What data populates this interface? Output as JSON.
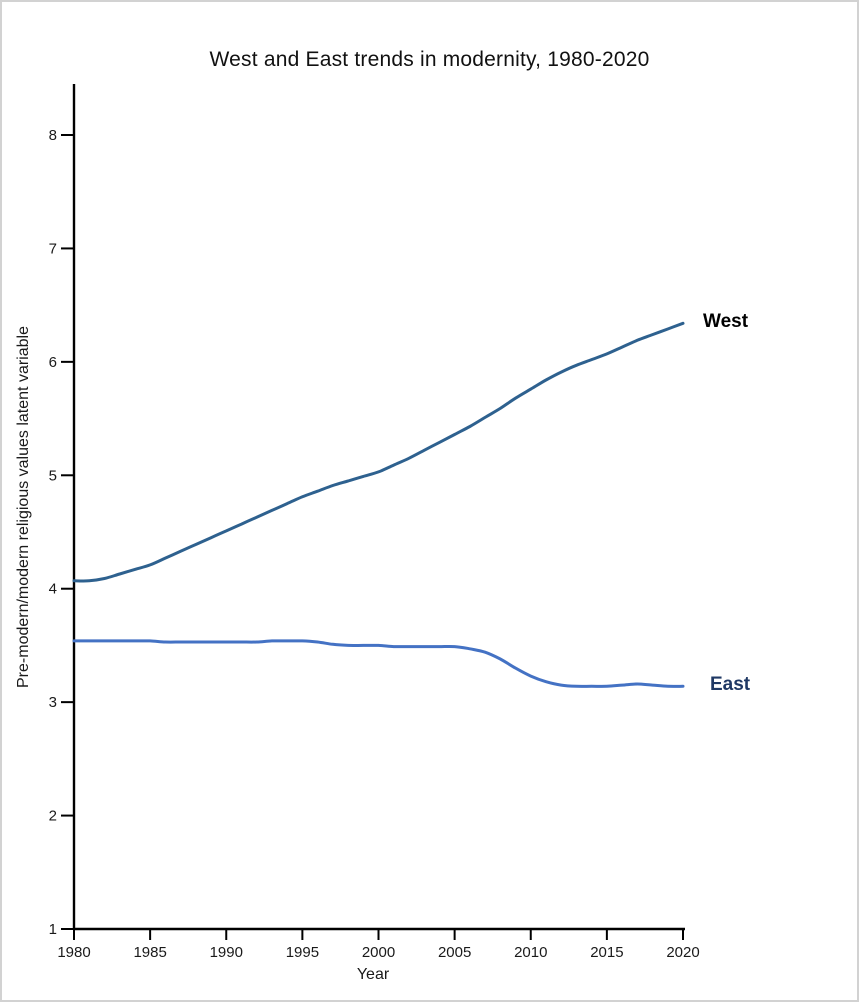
{
  "window": {
    "background": "#ffffff",
    "border_color": "#d2d2d2"
  },
  "chart_data": {
    "type": "line",
    "title": "West and East trends in modernity, 1980-2020",
    "xlabel": "Year",
    "ylabel": "Pre-modern/modern religious values latent variable",
    "xlim": [
      1980,
      2020
    ],
    "ylim": [
      1,
      8.45
    ],
    "xticks": [
      1980,
      1985,
      1990,
      1995,
      2000,
      2005,
      2010,
      2015,
      2020
    ],
    "yticks": [
      1,
      2,
      3,
      4,
      5,
      6,
      7,
      8
    ],
    "grid": false,
    "legend_position": "line-end-labels",
    "axis_color": "#000000",
    "tick_label_color": "#1a1a1a",
    "x": [
      1980,
      1981,
      1982,
      1983,
      1984,
      1985,
      1986,
      1987,
      1988,
      1989,
      1990,
      1991,
      1992,
      1993,
      1994,
      1995,
      1996,
      1997,
      1998,
      1999,
      2000,
      2001,
      2002,
      2003,
      2004,
      2005,
      2006,
      2007,
      2008,
      2009,
      2010,
      2011,
      2012,
      2013,
      2014,
      2015,
      2016,
      2017,
      2018,
      2019,
      2020
    ],
    "series": [
      {
        "name": "West",
        "color": "#2e618f",
        "label_color": "#000000",
        "values": [
          4.07,
          4.07,
          4.09,
          4.13,
          4.17,
          4.21,
          4.27,
          4.33,
          4.39,
          4.45,
          4.51,
          4.57,
          4.63,
          4.69,
          4.75,
          4.81,
          4.86,
          4.91,
          4.95,
          4.99,
          5.03,
          5.09,
          5.15,
          5.22,
          5.29,
          5.36,
          5.43,
          5.51,
          5.59,
          5.68,
          5.76,
          5.84,
          5.91,
          5.97,
          6.02,
          6.07,
          6.13,
          6.19,
          6.24,
          6.29,
          6.34
        ]
      },
      {
        "name": "East",
        "color": "#4472c4",
        "label_color": "#1f3864",
        "values": [
          3.54,
          3.54,
          3.54,
          3.54,
          3.54,
          3.54,
          3.53,
          3.53,
          3.53,
          3.53,
          3.53,
          3.53,
          3.53,
          3.54,
          3.54,
          3.54,
          3.53,
          3.51,
          3.5,
          3.5,
          3.5,
          3.49,
          3.49,
          3.49,
          3.49,
          3.49,
          3.47,
          3.44,
          3.38,
          3.3,
          3.23,
          3.18,
          3.15,
          3.14,
          3.14,
          3.14,
          3.15,
          3.16,
          3.15,
          3.14,
          3.14
        ]
      }
    ]
  }
}
